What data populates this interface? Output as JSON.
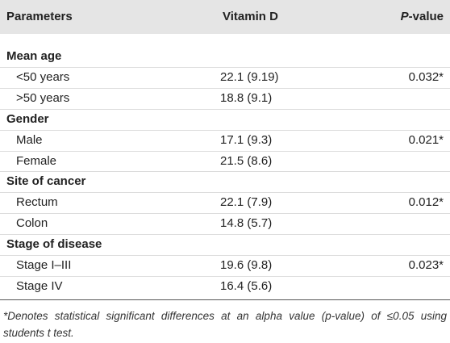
{
  "header": {
    "parameters": "Parameters",
    "vitamin_d": "Vitamin D",
    "p_value": {
      "italic": "P",
      "rest": "-value"
    }
  },
  "groups": [
    {
      "label": "Mean age",
      "rows": [
        {
          "label": "<50 years",
          "value": "22.1 (9.19)",
          "p_value": "0.032*"
        },
        {
          "label": ">50 years",
          "value": "18.8 (9.1)"
        }
      ]
    },
    {
      "label": "Gender",
      "rows": [
        {
          "label": "Male",
          "value": "17.1 (9.3)",
          "p_value": "0.021*"
        },
        {
          "label": "Female",
          "value": "21.5 (8.6)"
        }
      ]
    },
    {
      "label": "Site of cancer",
      "rows": [
        {
          "label": "Rectum",
          "value": "22.1 (7.9)",
          "p_value": "0.012*"
        },
        {
          "label": "Colon",
          "value": "14.8 (5.7)"
        }
      ]
    },
    {
      "label": "Stage of disease",
      "rows": [
        {
          "label": "Stage I–III",
          "value": "19.6 (9.8)",
          "p_value": "0.023*"
        },
        {
          "label": "Stage IV",
          "value": "16.4 (5.6)"
        }
      ]
    }
  ],
  "footnote": "*Denotes statistical significant differences at an alpha value (p-value) of ≤0.05 using students t test."
}
